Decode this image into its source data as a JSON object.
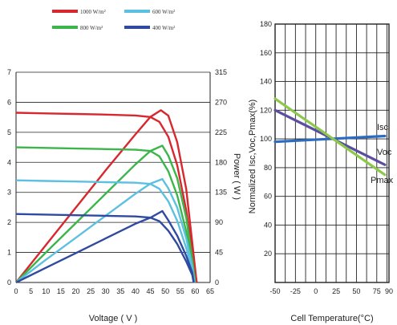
{
  "colors": {
    "red": "#d7282f",
    "green": "#3cb64a",
    "lightblue": "#5cc0e0",
    "darkblue": "#2f4aa0",
    "lime": "#8cc84b",
    "purple": "#5a4ea0",
    "blue": "#2b6cc0"
  },
  "chart_data": [
    {
      "type": "line",
      "legend": [
        {
          "name": "1000 W/m²",
          "color": "#d7282f"
        },
        {
          "name": "600 W/m²",
          "color": "#5cc0e0"
        },
        {
          "name": "800 W/m²",
          "color": "#3cb64a"
        },
        {
          "name": "400 W/m²",
          "color": "#2f4aa0"
        }
      ],
      "xlabel": "Voltage ( V )",
      "ylabel_right": "Power ( W )",
      "xlim": [
        0,
        65
      ],
      "ylim_left": [
        0,
        7
      ],
      "ylim_right": [
        0,
        315
      ],
      "x_ticks": [
        "0",
        "5",
        "10",
        "15",
        "20",
        "25",
        "30",
        "35",
        "40",
        "45",
        "50",
        "55",
        "60",
        "65"
      ],
      "y_left_ticks": [
        "0",
        "1",
        "2",
        "3",
        "4",
        "5",
        "6",
        "7"
      ],
      "y_right_ticks": [
        "0",
        "45",
        "90",
        "135",
        "180",
        "225",
        "270",
        "315"
      ],
      "grid": "horizontal",
      "series": [
        {
          "name": "1000 W/m²",
          "color": "#d7282f",
          "current": [
            [
              0,
              5.65
            ],
            [
              10,
              5.63
            ],
            [
              20,
              5.61
            ],
            [
              30,
              5.59
            ],
            [
              40,
              5.56
            ],
            [
              45,
              5.51
            ],
            [
              48,
              5.35
            ],
            [
              51,
              4.85
            ],
            [
              54,
              3.9
            ],
            [
              57,
              2.4
            ],
            [
              59,
              1.0
            ],
            [
              60.5,
              0
            ]
          ],
          "power": [
            [
              0,
              0
            ],
            [
              10,
              56
            ],
            [
              20,
              112
            ],
            [
              30,
              168
            ],
            [
              40,
              222
            ],
            [
              45,
              248
            ],
            [
              48.5,
              258
            ],
            [
              51,
              250
            ],
            [
              54,
              210
            ],
            [
              57,
              140
            ],
            [
              59,
              60
            ],
            [
              60.5,
              0
            ]
          ]
        },
        {
          "name": "800 W/m²",
          "color": "#3cb64a",
          "current": [
            [
              0,
              4.5
            ],
            [
              10,
              4.48
            ],
            [
              20,
              4.46
            ],
            [
              30,
              4.44
            ],
            [
              40,
              4.42
            ],
            [
              45,
              4.38
            ],
            [
              48,
              4.2
            ],
            [
              51,
              3.7
            ],
            [
              54,
              2.9
            ],
            [
              57,
              1.7
            ],
            [
              59,
              0.6
            ],
            [
              60,
              0
            ]
          ],
          "power": [
            [
              0,
              0
            ],
            [
              10,
              45
            ],
            [
              20,
              89
            ],
            [
              30,
              133
            ],
            [
              40,
              177
            ],
            [
              45,
              197
            ],
            [
              49,
              205
            ],
            [
              51,
              190
            ],
            [
              54,
              156
            ],
            [
              57,
              97
            ],
            [
              59,
              35
            ],
            [
              60,
              0
            ]
          ]
        },
        {
          "name": "600 W/m²",
          "color": "#5cc0e0",
          "current": [
            [
              0,
              3.4
            ],
            [
              10,
              3.38
            ],
            [
              20,
              3.36
            ],
            [
              30,
              3.34
            ],
            [
              40,
              3.32
            ],
            [
              45,
              3.28
            ],
            [
              48,
              3.12
            ],
            [
              51,
              2.7
            ],
            [
              54,
              2.05
            ],
            [
              57,
              1.15
            ],
            [
              59,
              0.4
            ],
            [
              59.8,
              0
            ]
          ],
          "power": [
            [
              0,
              0
            ],
            [
              10,
              34
            ],
            [
              20,
              67
            ],
            [
              30,
              100
            ],
            [
              40,
              133
            ],
            [
              45,
              148
            ],
            [
              49,
              155
            ],
            [
              51,
              141
            ],
            [
              54,
              112
            ],
            [
              57,
              66
            ],
            [
              59,
              24
            ],
            [
              59.8,
              0
            ]
          ]
        },
        {
          "name": "400 W/m²",
          "color": "#2f4aa0",
          "current": [
            [
              0,
              2.28
            ],
            [
              10,
              2.26
            ],
            [
              20,
              2.24
            ],
            [
              30,
              2.22
            ],
            [
              40,
              2.2
            ],
            [
              45,
              2.16
            ],
            [
              48,
              2.04
            ],
            [
              51,
              1.72
            ],
            [
              54,
              1.28
            ],
            [
              57,
              0.7
            ],
            [
              59,
              0.25
            ],
            [
              59.5,
              0
            ]
          ],
          "power": [
            [
              0,
              0
            ],
            [
              10,
              22
            ],
            [
              20,
              44
            ],
            [
              30,
              66
            ],
            [
              40,
              88
            ],
            [
              45,
              97
            ],
            [
              49,
              107
            ],
            [
              51,
              93
            ],
            [
              54,
              70
            ],
            [
              57,
              40
            ],
            [
              59,
              15
            ],
            [
              59.5,
              0
            ]
          ]
        }
      ]
    },
    {
      "type": "line",
      "xlabel": "Cell Temperature(°C)",
      "ylabel": "Normalized Isc,Voc,Pmax(%)",
      "xlim": [
        -50,
        90
      ],
      "ylim": [
        0,
        180
      ],
      "x_ticks": [
        "-50",
        "-25",
        "0",
        "25",
        "50",
        "75",
        "90"
      ],
      "y_ticks": [
        "20",
        "40",
        "60",
        "80",
        "100",
        "120",
        "140",
        "160",
        "180"
      ],
      "grid": "both",
      "series": [
        {
          "name": "Isc",
          "color": "#2b6cc0",
          "x": [
            -50,
            85
          ],
          "y": [
            98,
            102
          ]
        },
        {
          "name": "Voc",
          "color": "#5a4ea0",
          "x": [
            -50,
            85
          ],
          "y": [
            120,
            82
          ]
        },
        {
          "name": "Pmax",
          "color": "#8cc84b",
          "x": [
            -50,
            85
          ],
          "y": [
            128,
            75
          ]
        }
      ]
    }
  ]
}
